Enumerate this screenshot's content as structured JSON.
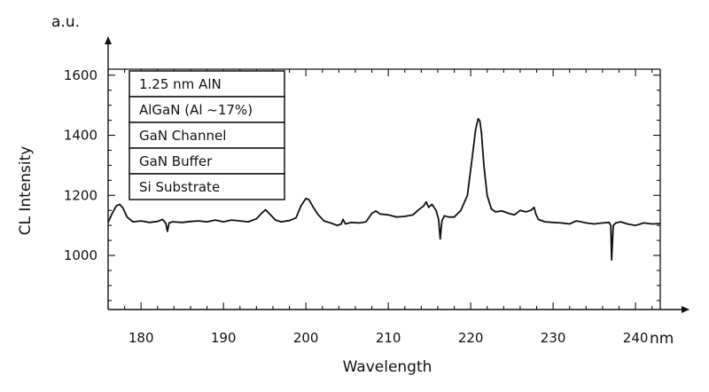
{
  "chart_data": {
    "type": "line",
    "title": "",
    "xlabel": "Wavelength",
    "ylabel": "CL Intensity",
    "x_unit": "nm",
    "y_unit": "a.u.",
    "xlim": [
      176,
      243
    ],
    "ylim": [
      820,
      1620
    ],
    "x_ticks": [
      180,
      190,
      200,
      210,
      220,
      230,
      240
    ],
    "y_ticks": [
      1000,
      1200,
      1400,
      1600
    ],
    "grid": false,
    "legend": {
      "position": "top-left",
      "entries": [
        "1.25 nm AlN",
        "AlGaN (Al ~17%)",
        "GaN Channel",
        "GaN Buffer",
        "Si Substrate"
      ]
    },
    "series": [
      {
        "color": "#111111",
        "x": [
          176,
          176.5,
          177,
          177.4,
          177.8,
          178.3,
          179,
          180,
          181,
          182,
          182.6,
          183,
          183.2,
          183.4,
          183.8,
          185,
          186,
          187,
          188,
          189,
          190,
          191,
          192,
          193,
          194,
          194.6,
          195.1,
          195.6,
          196.3,
          197,
          198,
          198.8,
          199.4,
          200,
          200.4,
          200.9,
          201.5,
          202.2,
          203,
          203.8,
          204.3,
          204.5,
          204.8,
          205.5,
          206.5,
          207.3,
          208,
          208.5,
          209,
          210,
          211,
          212,
          213,
          213.6,
          214.3,
          214.6,
          214.9,
          215.3,
          215.8,
          216.1,
          216.3,
          216.5,
          216.8,
          217.3,
          218,
          218.8,
          219.6,
          220.2,
          220.6,
          220.9,
          221.1,
          221.3,
          221.6,
          222,
          222.5,
          223,
          223.8,
          224.6,
          225.3,
          226,
          226.7,
          227.3,
          227.7,
          227.9,
          228.2,
          229,
          230,
          231,
          232,
          232.8,
          233.4,
          234,
          235,
          236,
          236.8,
          237,
          237.1,
          237.3,
          237.6,
          238.2,
          239,
          240,
          241,
          242,
          243
        ],
        "y": [
          1110,
          1140,
          1165,
          1170,
          1158,
          1128,
          1112,
          1115,
          1110,
          1113,
          1120,
          1107,
          1080,
          1108,
          1112,
          1110,
          1113,
          1115,
          1112,
          1118,
          1112,
          1118,
          1115,
          1112,
          1122,
          1140,
          1152,
          1138,
          1118,
          1112,
          1116,
          1125,
          1165,
          1190,
          1185,
          1160,
          1135,
          1115,
          1108,
          1100,
          1105,
          1120,
          1105,
          1110,
          1108,
          1112,
          1140,
          1148,
          1138,
          1135,
          1128,
          1130,
          1135,
          1150,
          1165,
          1178,
          1160,
          1170,
          1150,
          1120,
          1055,
          1115,
          1132,
          1128,
          1128,
          1150,
          1200,
          1330,
          1420,
          1455,
          1448,
          1410,
          1300,
          1200,
          1155,
          1145,
          1148,
          1140,
          1135,
          1150,
          1145,
          1150,
          1160,
          1138,
          1120,
          1112,
          1110,
          1108,
          1105,
          1115,
          1112,
          1108,
          1105,
          1108,
          1110,
          1100,
          985,
          1100,
          1108,
          1112,
          1105,
          1100,
          1108,
          1105,
          1106
        ]
      }
    ]
  }
}
